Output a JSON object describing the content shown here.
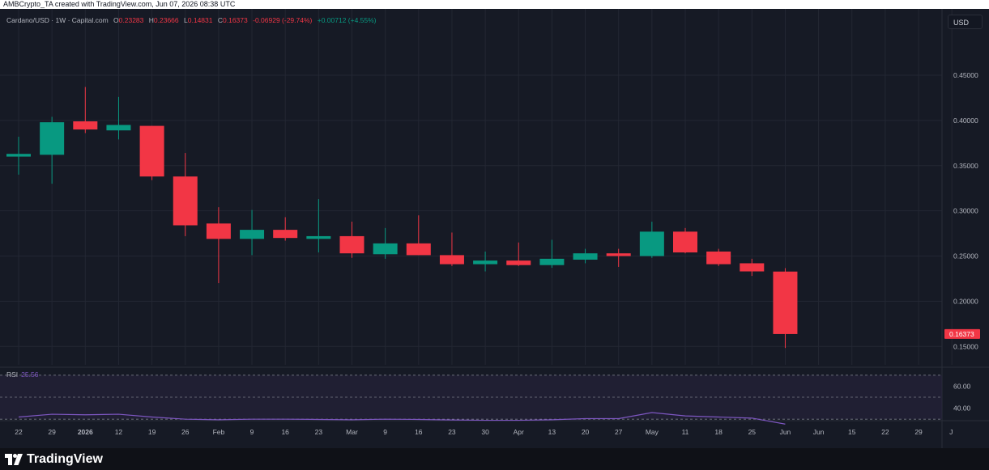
{
  "header": {
    "attribution": "AMBCrypto_TA created with TradingView.com, Jun 07, 2026 08:38 UTC"
  },
  "legend": {
    "symbol": "Cardano/USD · 1W · Capital.com",
    "o_label": "O",
    "o_value": "0.23283",
    "h_label": "H",
    "h_value": "0.23666",
    "l_label": "L",
    "l_value": "0.14831",
    "c_label": "C",
    "c_value": "0.16373",
    "change": "-0.06929 (-29.74%)",
    "extra": "+0.00712 (+4.55%)"
  },
  "currency_button": "USD",
  "price_axis": {
    "ticks": [
      "0.45000",
      "0.40000",
      "0.35000",
      "0.30000",
      "0.25000",
      "0.20000",
      "0.15000"
    ],
    "last_price_label": "0.16373"
  },
  "rsi": {
    "label": "RSI",
    "value": "25.56",
    "ticks": [
      "60.00",
      "40.00"
    ]
  },
  "time_axis": {
    "labels": [
      "22",
      "29",
      "2026",
      "12",
      "19",
      "26",
      "Feb",
      "9",
      "16",
      "23",
      "Mar",
      "9",
      "16",
      "23",
      "30",
      "Apr",
      "13",
      "20",
      "27",
      "May",
      "11",
      "18",
      "25",
      "Jun",
      "Jun",
      "15",
      "22",
      "29",
      "J"
    ]
  },
  "footer": {
    "brand": "TradingView"
  },
  "colors": {
    "up": "#089981",
    "down": "#f23645",
    "background": "#161a25",
    "grid": "#232733",
    "rsi_line": "#7e57c2",
    "rsi_band": "#2a2440"
  },
  "chart_data": {
    "type": "candlestick",
    "title": "Cardano/USD · 1W · Capital.com",
    "y_range": [
      0.13,
      0.49
    ],
    "candles": [
      {
        "x": "22",
        "o": 0.36,
        "h": 0.382,
        "l": 0.34,
        "c": 0.363
      },
      {
        "x": "29",
        "o": 0.362,
        "h": 0.404,
        "l": 0.33,
        "c": 0.398
      },
      {
        "x": "2026",
        "o": 0.399,
        "h": 0.437,
        "l": 0.386,
        "c": 0.39
      },
      {
        "x": "12",
        "o": 0.389,
        "h": 0.426,
        "l": 0.379,
        "c": 0.395
      },
      {
        "x": "19",
        "o": 0.394,
        "h": 0.394,
        "l": 0.334,
        "c": 0.338
      },
      {
        "x": "26",
        "o": 0.338,
        "h": 0.364,
        "l": 0.272,
        "c": 0.284
      },
      {
        "x": "Feb",
        "o": 0.286,
        "h": 0.304,
        "l": 0.22,
        "c": 0.269
      },
      {
        "x": "9",
        "o": 0.269,
        "h": 0.301,
        "l": 0.251,
        "c": 0.279
      },
      {
        "x": "16",
        "o": 0.279,
        "h": 0.293,
        "l": 0.267,
        "c": 0.27
      },
      {
        "x": "23",
        "o": 0.269,
        "h": 0.313,
        "l": 0.254,
        "c": 0.272
      },
      {
        "x": "Mar",
        "o": 0.272,
        "h": 0.288,
        "l": 0.248,
        "c": 0.253
      },
      {
        "x": "9",
        "o": 0.252,
        "h": 0.281,
        "l": 0.247,
        "c": 0.264
      },
      {
        "x": "16",
        "o": 0.264,
        "h": 0.295,
        "l": 0.251,
        "c": 0.251
      },
      {
        "x": "23",
        "o": 0.251,
        "h": 0.276,
        "l": 0.239,
        "c": 0.241
      },
      {
        "x": "30",
        "o": 0.241,
        "h": 0.255,
        "l": 0.233,
        "c": 0.245
      },
      {
        "x": "Apr",
        "o": 0.245,
        "h": 0.265,
        "l": 0.239,
        "c": 0.24
      },
      {
        "x": "13",
        "o": 0.24,
        "h": 0.268,
        "l": 0.237,
        "c": 0.247
      },
      {
        "x": "20",
        "o": 0.246,
        "h": 0.258,
        "l": 0.242,
        "c": 0.253
      },
      {
        "x": "27",
        "o": 0.253,
        "h": 0.258,
        "l": 0.238,
        "c": 0.25
      },
      {
        "x": "May",
        "o": 0.25,
        "h": 0.288,
        "l": 0.248,
        "c": 0.277
      },
      {
        "x": "11",
        "o": 0.277,
        "h": 0.281,
        "l": 0.253,
        "c": 0.254
      },
      {
        "x": "18",
        "o": 0.255,
        "h": 0.258,
        "l": 0.239,
        "c": 0.241
      },
      {
        "x": "25",
        "o": 0.242,
        "h": 0.247,
        "l": 0.228,
        "c": 0.233
      },
      {
        "x": "Jun",
        "o": 0.23283,
        "h": 0.23666,
        "l": 0.14831,
        "c": 0.16373
      }
    ],
    "rsi": {
      "range": [
        25,
        70
      ],
      "values": [
        32,
        34.5,
        34,
        34.5,
        32,
        30,
        29.5,
        30,
        30,
        29.8,
        29.5,
        30,
        29.8,
        29.3,
        29,
        29,
        29.5,
        30.5,
        30.5,
        36,
        33,
        32,
        31,
        25.56
      ]
    }
  }
}
